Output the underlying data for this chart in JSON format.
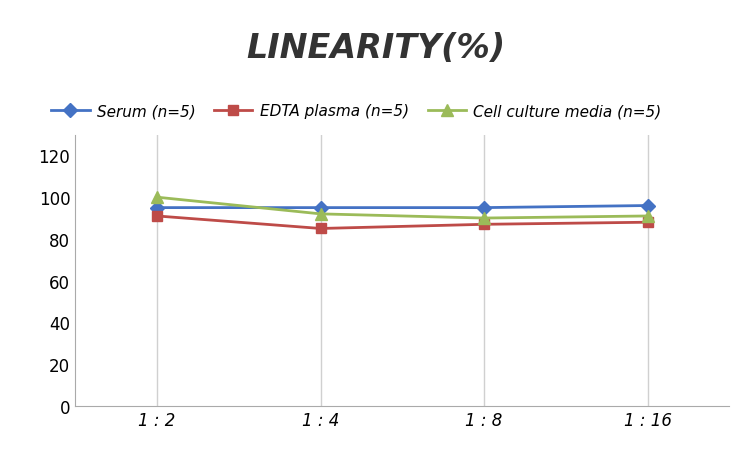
{
  "title": "LINEARITY(%)",
  "x_labels": [
    "1 : 2",
    "1 : 4",
    "1 : 8",
    "1 : 16"
  ],
  "x_positions": [
    0,
    1,
    2,
    3
  ],
  "series": [
    {
      "label": "Serum (n=5)",
      "values": [
        95,
        95,
        95,
        96
      ],
      "color": "#4472C4",
      "marker": "D",
      "linewidth": 2,
      "markersize": 7
    },
    {
      "label": "EDTA plasma (n=5)",
      "values": [
        91,
        85,
        87,
        88
      ],
      "color": "#BE4B48",
      "marker": "s",
      "linewidth": 2,
      "markersize": 7
    },
    {
      "label": "Cell culture media (n=5)",
      "values": [
        100,
        92,
        90,
        91
      ],
      "color": "#9BBB59",
      "marker": "^",
      "linewidth": 2,
      "markersize": 8
    }
  ],
  "ylim": [
    0,
    130
  ],
  "yticks": [
    0,
    20,
    40,
    60,
    80,
    100,
    120
  ],
  "grid_color": "#D0D0D0",
  "background_color": "#FFFFFF",
  "title_fontsize": 24,
  "legend_fontsize": 11,
  "tick_fontsize": 12
}
